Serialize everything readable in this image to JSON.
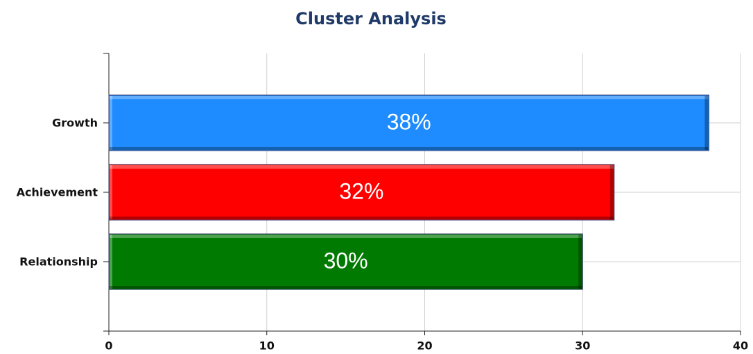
{
  "chart_data": {
    "type": "hbar",
    "title": "Cluster Analysis",
    "categories": [
      "Growth",
      "Achievement",
      "Relationship"
    ],
    "values": [
      38,
      32,
      30
    ],
    "value_labels": [
      "38%",
      "32%",
      "30%"
    ],
    "colors": [
      "#1e8cff",
      "#ff0000",
      "#007a00"
    ],
    "xlim": [
      0,
      40
    ],
    "xticks": [
      0,
      10,
      20,
      30,
      40
    ],
    "grid": true
  }
}
